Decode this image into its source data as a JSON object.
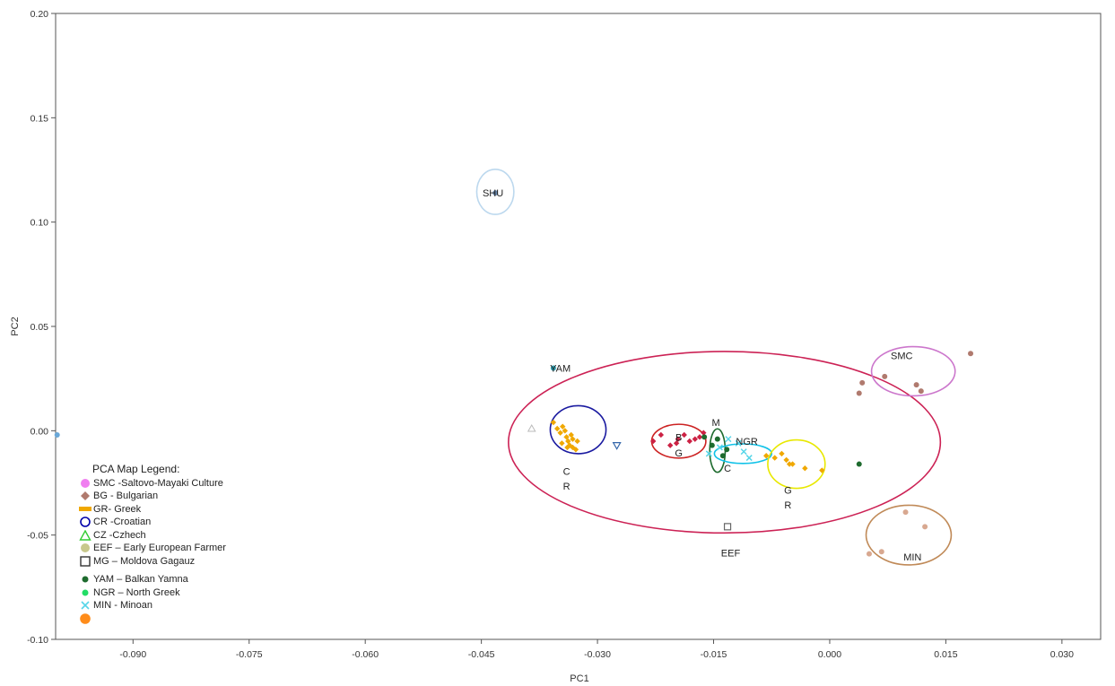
{
  "chart_data": {
    "type": "scatter",
    "xlabel": "PC1",
    "ylabel": "PC2",
    "xlim": [
      -0.1,
      0.035
    ],
    "ylim": [
      -0.1,
      0.2
    ],
    "xticks": [
      "-0.090",
      "-0.075",
      "-0.060",
      "-0.045",
      "-0.030",
      "-0.015",
      "0.000",
      "0.015",
      "0.030"
    ],
    "yticks": [
      "0.20",
      "0.15",
      "0.10",
      "0.05",
      "0.00",
      "-0.05",
      "-0.10"
    ],
    "grid": false,
    "legend_position": "bottom-left",
    "legend": {
      "title": "PCA Map Legend:",
      "items": [
        {
          "label": "SMC -Saltovo-Mayaki Culture",
          "color": "#f07ef0",
          "icon": "pink-circle-icon"
        },
        {
          "label": "BG - Bulgarian",
          "color": "#b07a6e",
          "icon": "brown-diamond-icon"
        },
        {
          "label": "GR- Greek",
          "color": "#f0a800",
          "icon": "orange-bar-icon"
        },
        {
          "label": "CR -Croatian",
          "color": "#0000aa",
          "icon": "blue-ring-icon"
        },
        {
          "label": "CZ -Czhech",
          "color": "#33cc33",
          "icon": "green-triangle-icon"
        },
        {
          "label": "EEF – Early European Farmer",
          "color": "#c8c88c",
          "icon": "olive-circle-icon"
        },
        {
          "label": "MG – Moldova Gagauz",
          "color": "#333333",
          "icon": "black-square-icon"
        },
        {
          "label": "YAM – Balkan Yamna",
          "color": "#1e6b2e",
          "icon": "dark-green-circle-icon"
        },
        {
          "label": "NGR – North Greek",
          "color": "#22dd66",
          "icon": "green-circle-icon"
        },
        {
          "label": "MIN - Minoan",
          "color": "#55d5e8",
          "icon": "cyan-cross-icon"
        },
        {
          "label": "",
          "color": "#ff8c1a",
          "icon": "orange-large-circle-icon"
        }
      ]
    },
    "labels": [
      {
        "text": "SHU",
        "x": -0.0435,
        "y": 0.114
      },
      {
        "text": "YAM",
        "x": -0.0348,
        "y": 0.03
      },
      {
        "text": "SMC",
        "x": 0.0093,
        "y": 0.036
      },
      {
        "text": "M",
        "x": -0.0147,
        "y": 0.004
      },
      {
        "text": "NGR",
        "x": -0.0107,
        "y": -0.005
      },
      {
        "text": "B",
        "x": -0.0195,
        "y": -0.003
      },
      {
        "text": "G",
        "x": -0.0195,
        "y": -0.0105
      },
      {
        "text": "C",
        "x": -0.0132,
        "y": -0.018
      },
      {
        "text": "C",
        "x": -0.034,
        "y": -0.0195
      },
      {
        "text": "R",
        "x": -0.034,
        "y": -0.0265
      },
      {
        "text": "G",
        "x": -0.0054,
        "y": -0.0285
      },
      {
        "text": "R",
        "x": -0.0054,
        "y": -0.0355
      },
      {
        "text": "EEF",
        "x": -0.0128,
        "y": -0.0585
      },
      {
        "text": "MIN",
        "x": 0.0107,
        "y": -0.0605
      }
    ],
    "series": [
      {
        "color": "#f0a800",
        "marker": "diamond",
        "x": [
          -0.0357,
          -0.0352,
          -0.0348,
          -0.0345,
          -0.0342,
          -0.034,
          -0.0338,
          -0.0336,
          -0.0334,
          -0.0332,
          -0.0346,
          -0.0339,
          -0.0332,
          -0.0328,
          -0.0326
        ],
        "y": [
          0.004,
          0.001,
          -0.001,
          0.002,
          0.0,
          -0.003,
          -0.005,
          -0.007,
          -0.002,
          -0.004,
          -0.006,
          -0.008,
          -0.008,
          -0.009,
          -0.005
        ]
      },
      {
        "color": "#f0a800",
        "marker": "diamond",
        "x": [
          -0.0082,
          -0.0071,
          -0.0062,
          -0.0056,
          -0.0052,
          -0.0048,
          -0.0032,
          -0.001
        ],
        "y": [
          -0.012,
          -0.013,
          -0.011,
          -0.014,
          -0.016,
          -0.016,
          -0.018,
          -0.019
        ]
      },
      {
        "color": "#cc2244",
        "marker": "diamond",
        "x": [
          -0.0228,
          -0.0218,
          -0.0206,
          -0.0198,
          -0.0196,
          -0.0188,
          -0.0181,
          -0.0174,
          -0.0168,
          -0.0163
        ],
        "y": [
          -0.005,
          -0.002,
          -0.007,
          -0.006,
          -0.004,
          -0.002,
          -0.005,
          -0.004,
          -0.003,
          -0.001
        ]
      },
      {
        "color": "#1e6b2e",
        "marker": "circle",
        "x": [
          -0.0162,
          -0.0152,
          -0.0145,
          -0.0138,
          -0.0133,
          0.0038
        ],
        "y": [
          -0.003,
          -0.007,
          -0.004,
          -0.012,
          -0.009,
          -0.016
        ]
      },
      {
        "color": "#55d5e8",
        "marker": "cross",
        "x": [
          -0.0156,
          -0.0142,
          -0.0131,
          -0.0118,
          -0.0111,
          -0.0104
        ],
        "y": [
          -0.011,
          -0.008,
          -0.004,
          -0.006,
          -0.01,
          -0.013
        ]
      },
      {
        "color": "#b07a6e",
        "marker": "circle",
        "x": [
          0.0042,
          0.0038,
          0.0071,
          0.0112,
          0.0118,
          0.0182
        ],
        "y": [
          0.023,
          0.018,
          0.026,
          0.022,
          0.019,
          0.037
        ]
      },
      {
        "color": "#d8a890",
        "marker": "circle",
        "x": [
          0.0051,
          0.0067,
          0.0098,
          0.0123
        ],
        "y": [
          -0.059,
          -0.058,
          -0.039,
          -0.046
        ]
      },
      {
        "color": "#2f9fb0",
        "marker": "circle",
        "x": [
          -0.0357
        ],
        "y": [
          0.03
        ]
      },
      {
        "color": "#6a8ab0",
        "marker": "circle",
        "x": [
          -0.0432
        ],
        "y": [
          0.114
        ]
      },
      {
        "color": "#3366aa",
        "marker": "triangle-down",
        "x": [
          -0.0275
        ],
        "y": [
          -0.007
        ]
      },
      {
        "color": "#bbbbbb",
        "marker": "triangle",
        "x": [
          -0.0385
        ],
        "y": [
          0.001
        ]
      },
      {
        "color": "#666666",
        "marker": "square",
        "x": [
          -0.0132
        ],
        "y": [
          -0.046
        ]
      },
      {
        "color": "#6aa8d8",
        "marker": "circle",
        "x": [
          -0.0998
        ],
        "y": [
          -0.002
        ]
      }
    ],
    "ellipses": [
      {
        "color": "#cc2255",
        "cx": -0.0136,
        "cy": -0.0055,
        "rx": 0.0279,
        "ry": 0.0435
      },
      {
        "color": "#bcd8ee",
        "cx": -0.0432,
        "cy": 0.1145,
        "rx": 0.0024,
        "ry": 0.0108
      },
      {
        "color": "#1a1aa0",
        "cx": -0.0325,
        "cy": 0.0005,
        "rx": 0.0036,
        "ry": 0.0115
      },
      {
        "color": "#cc2222",
        "cx": -0.0195,
        "cy": -0.005,
        "rx": 0.0035,
        "ry": 0.0081
      },
      {
        "color": "#1e6b2e",
        "cx": -0.0145,
        "cy": -0.0095,
        "rx": 0.001,
        "ry": 0.0104
      },
      {
        "color": "#11c2e8",
        "cx": -0.0112,
        "cy": -0.011,
        "rx": 0.0037,
        "ry": 0.0047
      },
      {
        "color": "#e8e800",
        "cx": -0.0043,
        "cy": -0.016,
        "rx": 0.0037,
        "ry": 0.0116
      },
      {
        "color": "#cc77cc",
        "cx": 0.0108,
        "cy": 0.0285,
        "rx": 0.0054,
        "ry": 0.0118
      },
      {
        "color": "#c08a58",
        "cx": 0.0102,
        "cy": -0.05,
        "rx": 0.0055,
        "ry": 0.0143
      }
    ]
  }
}
